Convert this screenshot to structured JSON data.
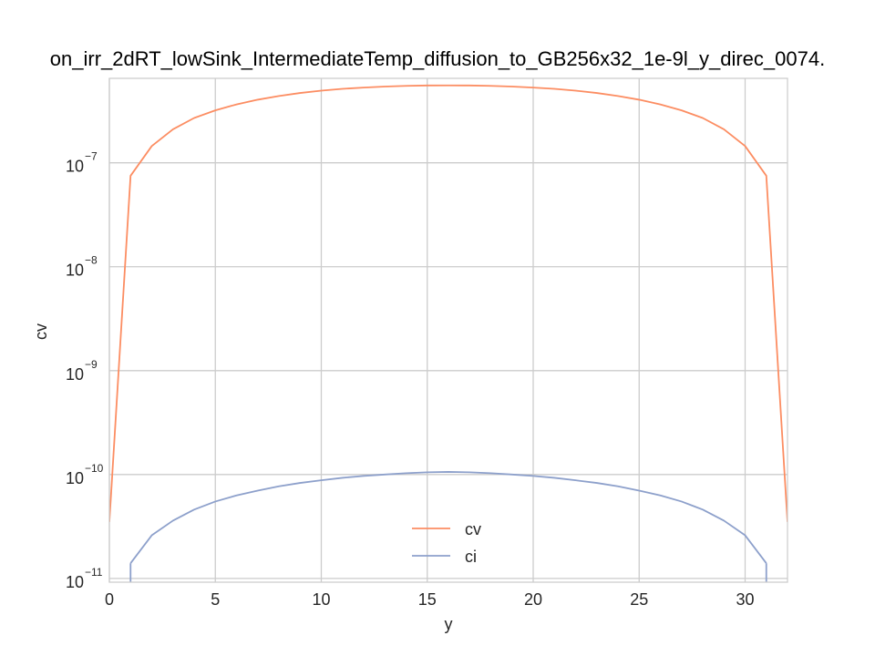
{
  "chart_data": {
    "type": "line",
    "title": "on_irr_2dRT_lowSink_IntermediateTemp_diffusion_to_GB256x32_1e-9l_y_direc_0074.",
    "xlabel": "y",
    "ylabel": "cv",
    "xlim": [
      0,
      32
    ],
    "ylim": [
      9.2e-12,
      6.5e-07
    ],
    "yscale": "log",
    "grid": true,
    "legend_position": "lower center",
    "x_ticks": [
      0,
      5,
      10,
      15,
      20,
      25,
      30
    ],
    "y_ticks": [
      {
        "value": 1e-11,
        "base": "10",
        "exp": "−11"
      },
      {
        "value": 1e-10,
        "base": "10",
        "exp": "−10"
      },
      {
        "value": 1e-09,
        "base": "10",
        "exp": "−9"
      },
      {
        "value": 1e-08,
        "base": "10",
        "exp": "−8"
      },
      {
        "value": 1e-07,
        "base": "10",
        "exp": "−7"
      }
    ],
    "x": [
      0,
      1,
      2,
      3,
      4,
      5,
      6,
      7,
      8,
      9,
      10,
      11,
      12,
      13,
      14,
      15,
      16,
      17,
      18,
      19,
      20,
      21,
      22,
      23,
      24,
      25,
      26,
      27,
      28,
      29,
      30,
      31,
      32
    ],
    "series": [
      {
        "name": "cv",
        "color": "#fc8d62",
        "values": [
          3.5e-11,
          7.5e-08,
          1.45e-07,
          2.1e-07,
          2.7e-07,
          3.2e-07,
          3.65e-07,
          4.05e-07,
          4.4e-07,
          4.7e-07,
          4.95e-07,
          5.15e-07,
          5.3e-07,
          5.42e-07,
          5.5e-07,
          5.55e-07,
          5.56e-07,
          5.55e-07,
          5.5e-07,
          5.42e-07,
          5.3e-07,
          5.15e-07,
          4.95e-07,
          4.7e-07,
          4.4e-07,
          4.05e-07,
          3.65e-07,
          3.2e-07,
          2.7e-07,
          2.1e-07,
          1.45e-07,
          7.5e-08,
          3.5e-11
        ]
      },
      {
        "name": "ci",
        "color": "#8da0cb",
        "values": [
          null,
          1.4e-11,
          2.6e-11,
          3.6e-11,
          4.6e-11,
          5.5e-11,
          6.3e-11,
          7e-11,
          7.7e-11,
          8.3e-11,
          8.8e-11,
          9.3e-11,
          9.7e-11,
          1e-10,
          1.03e-10,
          1.05e-10,
          1.06e-10,
          1.05e-10,
          1.03e-10,
          1e-10,
          9.7e-11,
          9.3e-11,
          8.8e-11,
          8.3e-11,
          7.7e-11,
          7e-11,
          6.3e-11,
          5.5e-11,
          4.6e-11,
          3.6e-11,
          2.6e-11,
          1.4e-11,
          null
        ]
      }
    ]
  }
}
